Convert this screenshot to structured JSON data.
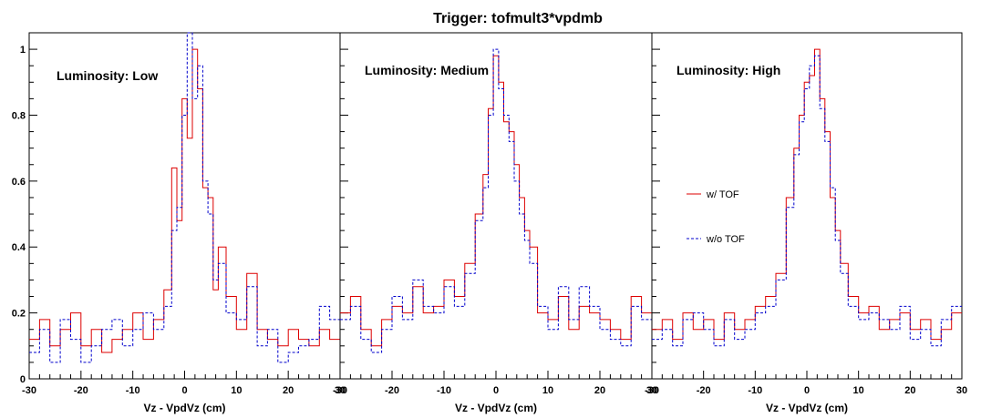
{
  "title": "Trigger: tofmult3*vpdmb",
  "colors": {
    "with_tof": "#dd0000",
    "without_tof": "#0000cc",
    "frame": "#000000"
  },
  "chart_data": [
    {
      "type": "line",
      "panel_label": "Luminosity: Low",
      "xlabel": "Vz - VpdVz (cm)",
      "xlim": [
        -30,
        30
      ],
      "ylim": [
        0,
        1.05
      ],
      "x_ticks": [
        "-30",
        "-20",
        "-10",
        "0",
        "10",
        "20",
        "30"
      ],
      "y_ticks": [
        "0",
        "0.2",
        "0.4",
        "0.6",
        "0.8",
        "1"
      ],
      "x": [
        -29,
        -27,
        -25,
        -23,
        -21,
        -19,
        -17,
        -15,
        -13,
        -11,
        -9,
        -7,
        -5,
        -3,
        -2,
        -1,
        0,
        1,
        2,
        3,
        4,
        5,
        6,
        7,
        9,
        11,
        13,
        15,
        17,
        19,
        21,
        23,
        25,
        27,
        29
      ],
      "series": [
        {
          "name": "w/ TOF",
          "style": "solid",
          "values": [
            0.12,
            0.18,
            0.1,
            0.15,
            0.2,
            0.1,
            0.15,
            0.08,
            0.12,
            0.15,
            0.2,
            0.12,
            0.18,
            0.27,
            0.64,
            0.48,
            0.85,
            0.73,
            1.0,
            0.88,
            0.58,
            0.55,
            0.27,
            0.4,
            0.25,
            0.15,
            0.32,
            0.15,
            0.12,
            0.1,
            0.15,
            0.12,
            0.1,
            0.15,
            0.12
          ]
        },
        {
          "name": "w/o TOF",
          "style": "dashed",
          "values": [
            0.08,
            0.15,
            0.05,
            0.18,
            0.12,
            0.05,
            0.1,
            0.15,
            0.18,
            0.1,
            0.15,
            0.2,
            0.15,
            0.22,
            0.45,
            0.52,
            0.8,
            1.05,
            0.85,
            0.95,
            0.6,
            0.5,
            0.3,
            0.35,
            0.2,
            0.18,
            0.28,
            0.1,
            0.15,
            0.05,
            0.08,
            0.1,
            0.12,
            0.22,
            0.18
          ]
        }
      ]
    },
    {
      "type": "line",
      "panel_label": "Luminosity: Medium",
      "xlabel": "Vz - VpdVz (cm)",
      "xlim": [
        -30,
        30
      ],
      "ylim": [
        0,
        1.05
      ],
      "x_ticks": [
        "-30",
        "-20",
        "-10",
        "0",
        "10",
        "20",
        "30"
      ],
      "y_ticks": [],
      "x": [
        -29,
        -27,
        -25,
        -23,
        -21,
        -19,
        -17,
        -15,
        -13,
        -11,
        -9,
        -7,
        -5,
        -3,
        -2,
        -1,
        0,
        1,
        2,
        3,
        4,
        5,
        6,
        7,
        9,
        11,
        13,
        15,
        17,
        19,
        21,
        23,
        25,
        27,
        29
      ],
      "series": [
        {
          "name": "w/ TOF",
          "style": "solid",
          "values": [
            0.2,
            0.25,
            0.15,
            0.1,
            0.18,
            0.22,
            0.2,
            0.28,
            0.2,
            0.22,
            0.3,
            0.25,
            0.35,
            0.5,
            0.62,
            0.82,
            0.98,
            0.9,
            0.78,
            0.75,
            0.65,
            0.55,
            0.45,
            0.4,
            0.2,
            0.18,
            0.25,
            0.15,
            0.22,
            0.2,
            0.18,
            0.15,
            0.12,
            0.25,
            0.2
          ]
        },
        {
          "name": "w/o TOF",
          "style": "dashed",
          "values": [
            0.18,
            0.22,
            0.12,
            0.08,
            0.15,
            0.25,
            0.18,
            0.3,
            0.22,
            0.2,
            0.28,
            0.22,
            0.32,
            0.48,
            0.58,
            0.8,
            1.0,
            0.88,
            0.8,
            0.72,
            0.6,
            0.5,
            0.42,
            0.35,
            0.22,
            0.15,
            0.28,
            0.18,
            0.28,
            0.22,
            0.15,
            0.12,
            0.1,
            0.22,
            0.18
          ]
        }
      ]
    },
    {
      "type": "line",
      "panel_label": "Luminosity: High",
      "xlabel": "Vz - VpdVz (cm)",
      "xlim": [
        -30,
        30
      ],
      "ylim": [
        0,
        1.05
      ],
      "x_ticks": [
        "-30",
        "-20",
        "-10",
        "0",
        "10",
        "20",
        "30"
      ],
      "y_ticks": [],
      "legend": [
        "w/ TOF",
        "w/o TOF"
      ],
      "x": [
        -29,
        -27,
        -25,
        -23,
        -21,
        -19,
        -17,
        -15,
        -13,
        -11,
        -9,
        -7,
        -5,
        -3,
        -2,
        -1,
        0,
        1,
        2,
        3,
        4,
        5,
        6,
        7,
        9,
        11,
        13,
        15,
        17,
        19,
        21,
        23,
        25,
        27,
        29
      ],
      "series": [
        {
          "name": "w/ TOF",
          "style": "solid",
          "values": [
            0.15,
            0.18,
            0.12,
            0.2,
            0.15,
            0.18,
            0.12,
            0.2,
            0.15,
            0.18,
            0.22,
            0.25,
            0.32,
            0.55,
            0.7,
            0.8,
            0.9,
            0.92,
            1.0,
            0.85,
            0.75,
            0.55,
            0.45,
            0.35,
            0.25,
            0.2,
            0.22,
            0.15,
            0.18,
            0.2,
            0.15,
            0.18,
            0.12,
            0.15,
            0.2
          ]
        },
        {
          "name": "w/o TOF",
          "style": "dashed",
          "values": [
            0.12,
            0.15,
            0.1,
            0.18,
            0.2,
            0.15,
            0.1,
            0.18,
            0.12,
            0.15,
            0.2,
            0.22,
            0.3,
            0.52,
            0.68,
            0.78,
            0.88,
            0.95,
            0.98,
            0.82,
            0.72,
            0.58,
            0.42,
            0.32,
            0.22,
            0.18,
            0.2,
            0.18,
            0.15,
            0.22,
            0.12,
            0.15,
            0.1,
            0.18,
            0.22
          ]
        }
      ]
    }
  ]
}
